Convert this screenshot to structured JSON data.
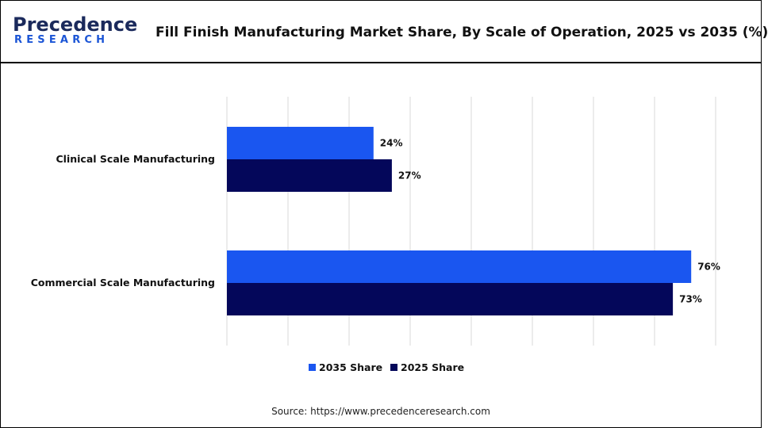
{
  "brand": {
    "logo_top": "Precedence",
    "logo_bottom": "RESEARCH"
  },
  "source_text": "Source: https://www.precedenceresearch.com",
  "chart_data": {
    "type": "bar",
    "orientation": "horizontal",
    "title": "Fill Finish Manufacturing  Market Share, By Scale of Operation,  2025 vs 2035 (%)",
    "categories": [
      "Clinical Scale Manufacturing",
      "Commercial Scale Manufacturing"
    ],
    "series": [
      {
        "name": "2035 Share",
        "values": [
          24,
          76
        ],
        "color": "#1a56f0"
      },
      {
        "name": "2025 Share",
        "values": [
          27,
          73
        ],
        "color": "#04075a"
      }
    ],
    "value_suffix": "%",
    "xlim": [
      0,
      80
    ],
    "grid": true,
    "legend_position": "bottom"
  }
}
